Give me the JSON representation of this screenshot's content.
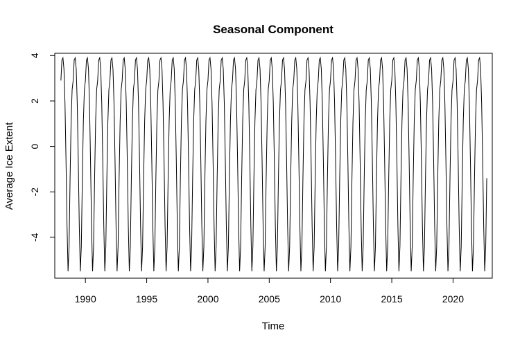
{
  "chart_data": {
    "type": "line",
    "title": "Seasonal Component",
    "xlabel": "Time",
    "ylabel": "Average Ice Extent",
    "xlim": [
      1987.5,
      2023.2
    ],
    "ylim": [
      -5.8,
      4.1
    ],
    "x_ticks": [
      1990,
      1995,
      2000,
      2005,
      2010,
      2015,
      2020
    ],
    "y_ticks": [
      -4,
      -2,
      0,
      2,
      4
    ],
    "grid": false,
    "legend": "none",
    "line_color": "#000000",
    "series": [
      {
        "x_start": 1988.0,
        "x_end": 2022.75,
        "frequency_per_year": 12,
        "seasonal_pattern": [
          2.9,
          3.8,
          3.9,
          3.4,
          1.9,
          -0.6,
          -3.5,
          -5.5,
          -4.4,
          -1.4,
          1.1,
          2.5
        ]
      }
    ]
  }
}
